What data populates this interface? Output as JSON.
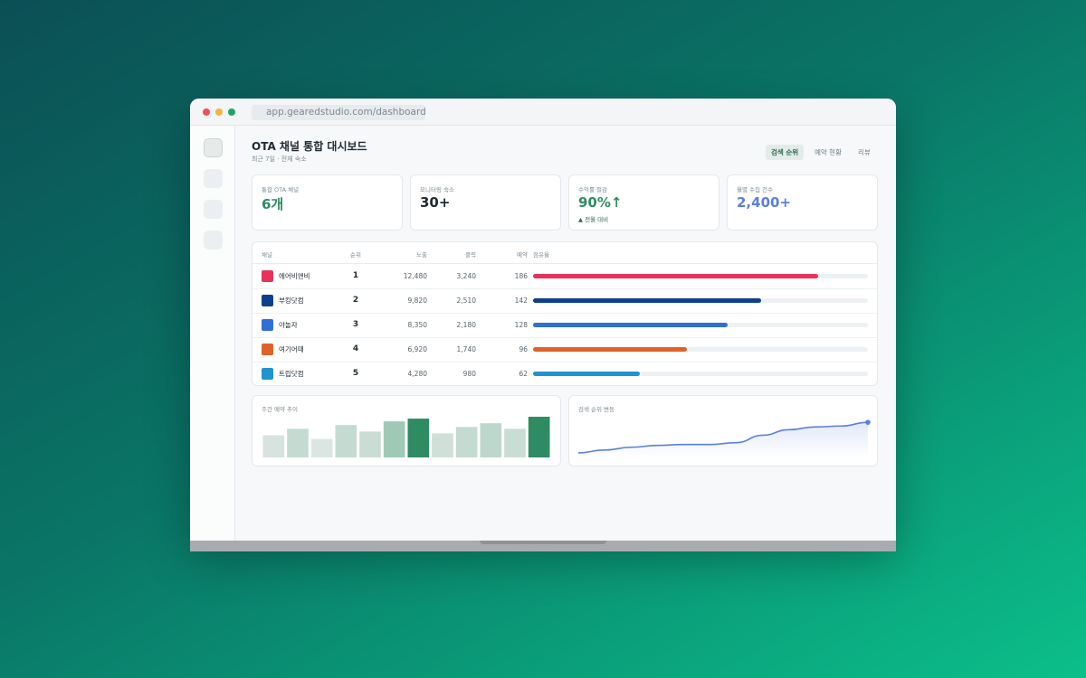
{
  "browser": {
    "url": "app.gearedstudio.com/dashboard"
  },
  "header": {
    "title": "OTA 채널 통합 대시보드",
    "subtitle": "최근 7일 · 전체 숙소",
    "tabs": [
      "검색 순위",
      "예약 현황",
      "리뷰"
    ],
    "active_tab": 0
  },
  "kpis": [
    {
      "label": "통합 OTA 채널",
      "value": "6개",
      "color": "#2e8b62"
    },
    {
      "label": "모니터링 숙소",
      "value": "30+",
      "color": "#1f2a33"
    },
    {
      "label": "수익률 절감",
      "value": "90%↑",
      "note": "▲ 전월 대비",
      "color": "#2e8b62"
    },
    {
      "label": "월별 수집 건수",
      "value": "2,400+",
      "color": "#5b7fe0"
    }
  ],
  "table": {
    "columns": [
      "채널",
      "순위",
      "노출",
      "클릭",
      "예약",
      "점유율"
    ],
    "rows": [
      {
        "channel": "에어비앤비",
        "color": "#e8325a",
        "rank": "1",
        "impressions": "12,480",
        "clicks": "3,240",
        "bookings": "186",
        "share": 85
      },
      {
        "channel": "부킹닷컴",
        "color": "#0d3f8f",
        "rank": "2",
        "impressions": "9,820",
        "clicks": "2,510",
        "bookings": "142",
        "share": 68
      },
      {
        "channel": "야놀자",
        "color": "#2f6fd6",
        "rank": "3",
        "impressions": "8,350",
        "clicks": "2,180",
        "bookings": "128",
        "share": 58
      },
      {
        "channel": "여기어때",
        "color": "#e0622a",
        "rank": "4",
        "impressions": "6,920",
        "clicks": "1,740",
        "bookings": "96",
        "share": 46
      },
      {
        "channel": "트립닷컴",
        "color": "#1f94d0",
        "rank": "5",
        "impressions": "4,280",
        "clicks": "980",
        "bookings": "62",
        "share": 32
      }
    ]
  },
  "charts": [
    {
      "type": "bar",
      "title": "주간 예약 추이",
      "values": [
        24,
        31,
        20,
        35,
        28,
        39,
        42,
        26,
        33,
        37,
        31,
        44
      ],
      "colors": [
        "#d6e3de",
        "#c4dbd1",
        "#dbe6e2",
        "#c4dbd1",
        "#c9ddd5",
        "#9fc9b5",
        "#2e8b62",
        "#cfe0d9",
        "#c4dbd1",
        "#bcd7cb",
        "#c9ddd5",
        "#2e8b62"
      ],
      "ylim": [
        0,
        45
      ]
    },
    {
      "type": "line",
      "title": "검색 순위 변동",
      "values": [
        5,
        8,
        11,
        13,
        14,
        14,
        16,
        24,
        30,
        33,
        34,
        38
      ],
      "color": "#5b7fe0",
      "ylim": [
        0,
        45
      ]
    }
  ]
}
